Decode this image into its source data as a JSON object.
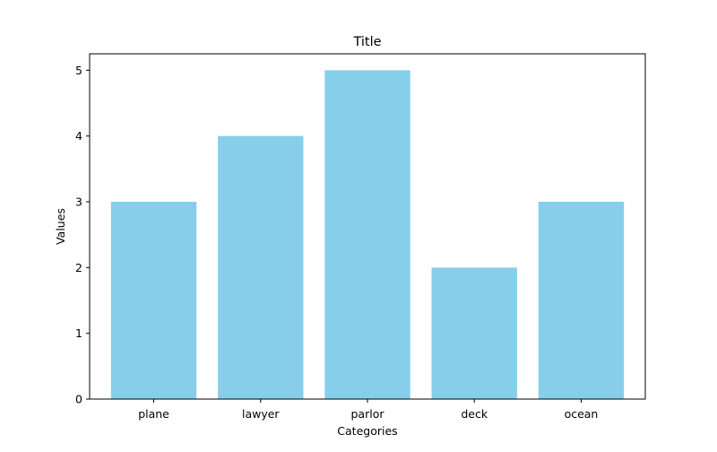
{
  "chart_data": {
    "type": "bar",
    "title": "Title",
    "xlabel": "Categories",
    "ylabel": "Values",
    "categories": [
      "plane",
      "lawyer",
      "parlor",
      "deck",
      "ocean"
    ],
    "values": [
      3,
      4,
      5,
      2,
      3
    ],
    "ylim": [
      0,
      5.25
    ],
    "yticks": [
      0,
      1,
      2,
      3,
      4,
      5
    ],
    "bar_color": "#87ceeb",
    "grid": false,
    "legend": "none"
  }
}
